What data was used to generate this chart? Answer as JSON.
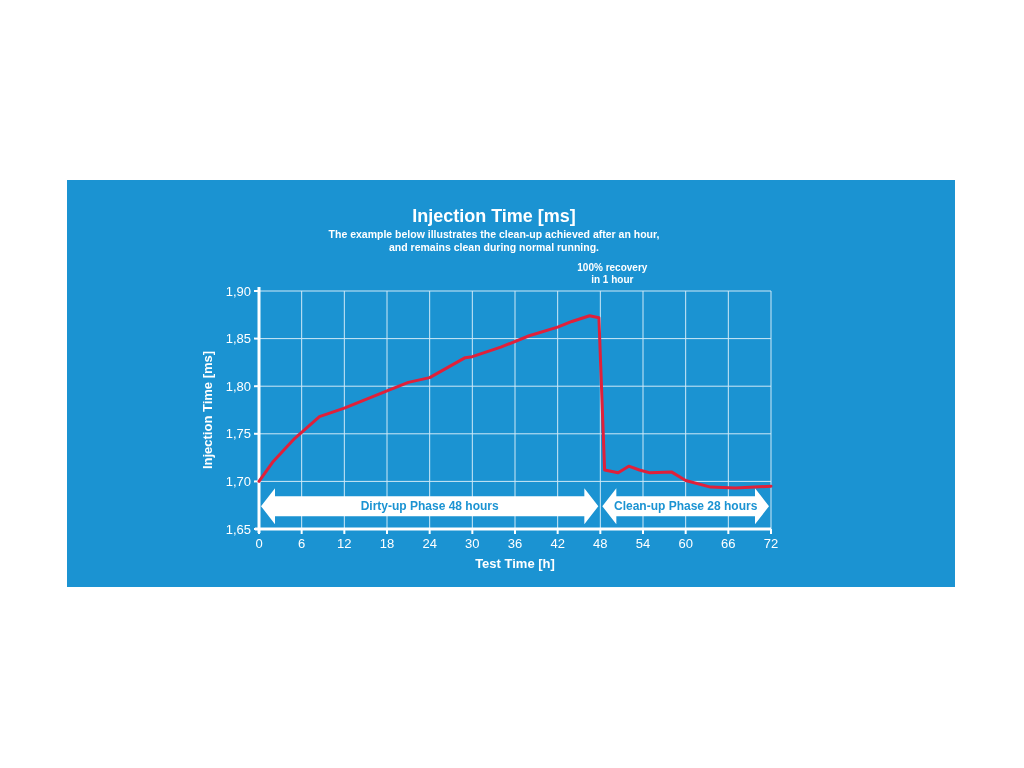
{
  "chart_data": {
    "type": "line",
    "title": "Injection Time [ms]",
    "subtitle": "The example below illustrates the clean-up achieved after an hour, and remains clean during normal running.",
    "xlabel": "Test Time [h]",
    "ylabel": "Injection Time [ms]",
    "annotations": [
      "100% recovery in 1 hour",
      "Dirty-up Phase 48 hours",
      "Clean-up Phase 28 hours"
    ],
    "xlim": [
      0,
      72
    ],
    "xticks": [
      0,
      6,
      12,
      18,
      24,
      30,
      36,
      42,
      48,
      54,
      60,
      66,
      72
    ],
    "ylim": [
      1.65,
      1.9
    ],
    "yticks": [
      {
        "value": 1.65,
        "label": "1,65"
      },
      {
        "value": 1.7,
        "label": "1,70"
      },
      {
        "value": 1.75,
        "label": "1,75"
      },
      {
        "value": 1.8,
        "label": "1,80"
      },
      {
        "value": 1.85,
        "label": "1,85"
      },
      {
        "value": 1.9,
        "label": "1,90"
      }
    ],
    "grid": true,
    "series": [
      {
        "color": "#e0203a",
        "x": [
          0,
          2,
          5,
          8.5,
          12,
          18,
          21,
          24,
          29,
          30,
          34,
          38,
          42,
          44,
          46.5,
          47.8,
          48.6,
          50.5,
          52,
          53.5,
          55,
          58,
          60,
          63.5,
          67,
          72
        ],
        "values": [
          1.7,
          1.721,
          1.745,
          1.768,
          1.777,
          1.795,
          1.804,
          1.809,
          1.83,
          1.831,
          1.841,
          1.853,
          1.862,
          1.868,
          1.874,
          1.872,
          1.712,
          1.709,
          1.716,
          1.712,
          1.709,
          1.71,
          1.701,
          1.694,
          1.693,
          1.695
        ]
      }
    ]
  }
}
